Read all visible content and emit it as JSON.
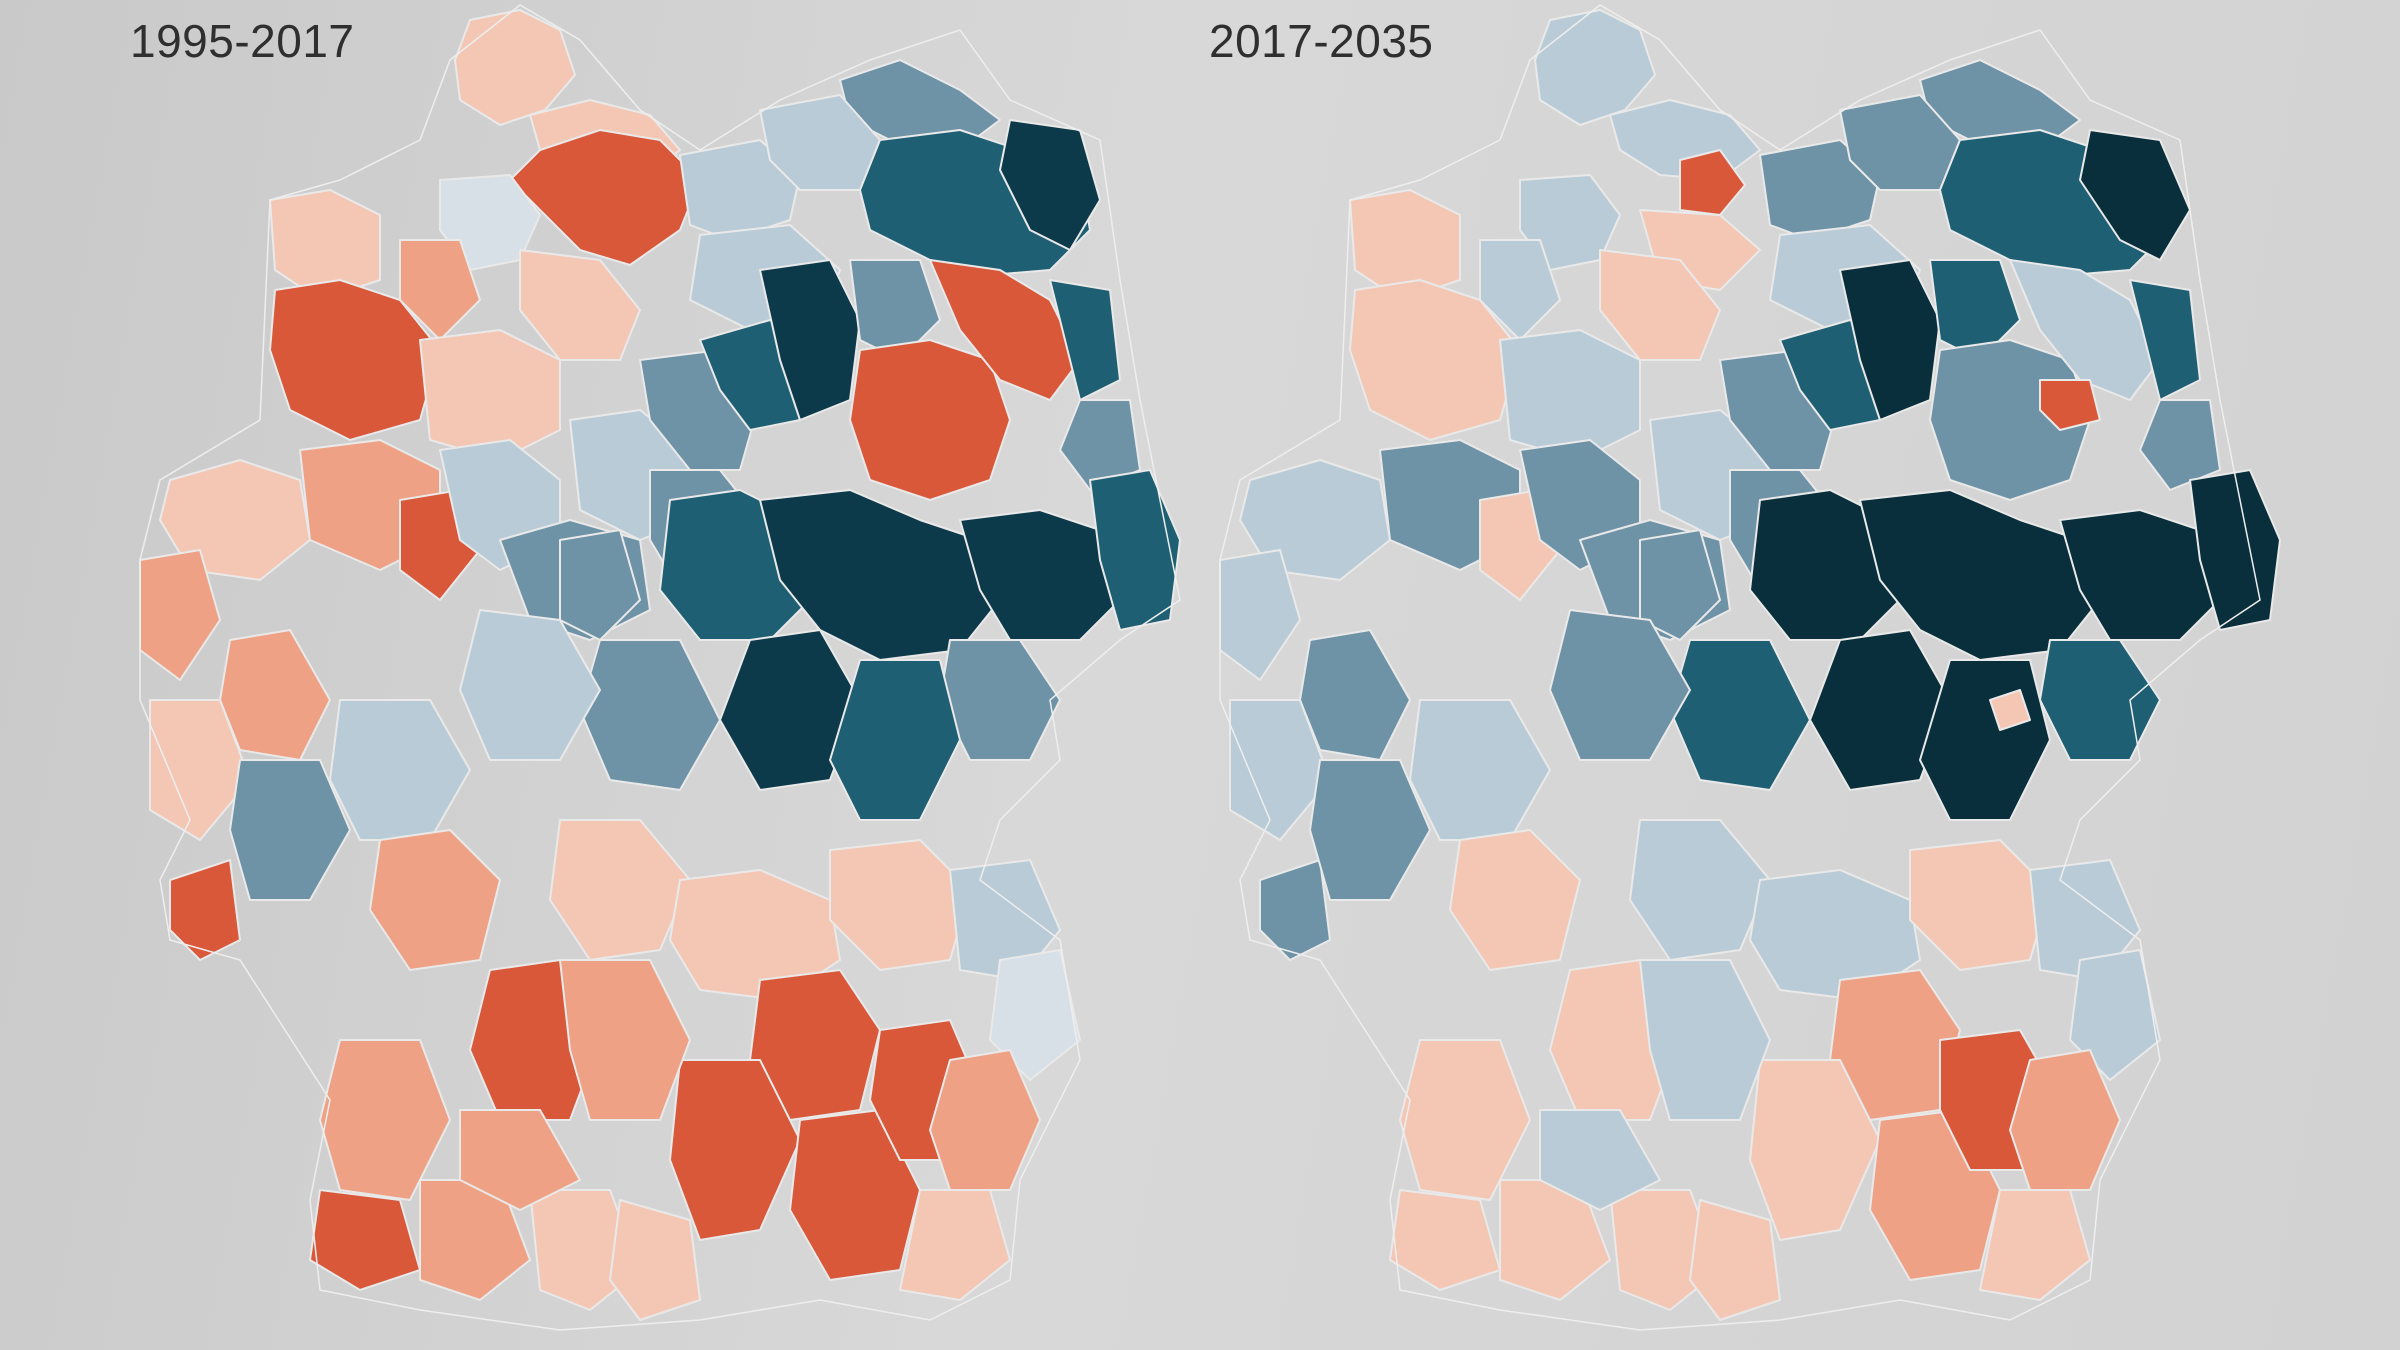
{
  "maps": [
    {
      "title": "1995-2017",
      "color_scale": {
        "strong_decrease": "#0d3a4a",
        "decrease": "#1f5f73",
        "slight_decrease": "#6f93a6",
        "minimal_decrease": "#b9cbd6",
        "neutral": "#d7e0e6",
        "minimal_increase": "#f4c7b5",
        "slight_increase": "#eea184",
        "increase": "#e06a48",
        "strong_increase": "#d9583a"
      }
    },
    {
      "title": "2017-2035",
      "color_scale": {
        "strong_decrease": "#082f3b",
        "decrease": "#1f5f73",
        "slight_decrease": "#6f93a6",
        "minimal_decrease": "#b9cbd6",
        "neutral": "#d7e0e6",
        "minimal_increase": "#f4c7b5",
        "slight_increase": "#eea184",
        "increase": "#e06a48",
        "strong_increase": "#d9583a"
      }
    }
  ]
}
